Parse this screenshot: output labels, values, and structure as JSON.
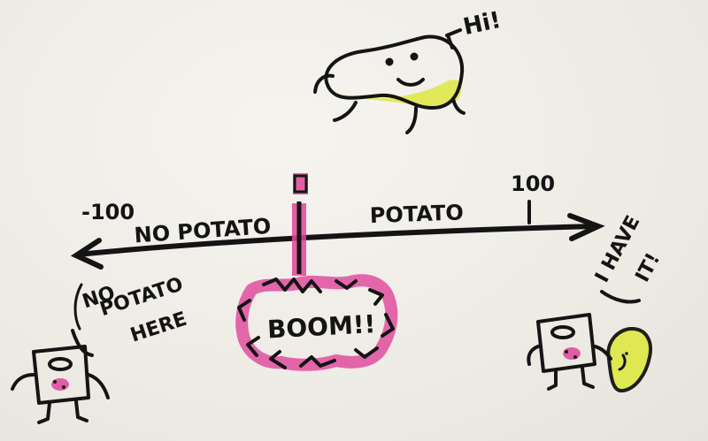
{
  "colors": {
    "ink": "#141414",
    "highlight_pink": "#e0449a",
    "highlight_yellow": "#dfe84a",
    "paper": "#f1efea"
  },
  "axis": {
    "left_tick": "-100",
    "center_tick": "0",
    "right_tick": "100",
    "left_label": "NO POTATO",
    "right_label": "POTATO"
  },
  "speech": {
    "potato_greeting": "Hi!",
    "left_character_line1": "NO",
    "left_character_line2": "POTATO",
    "left_character_line3": "HERE",
    "right_character_line1": "I HAVE",
    "right_character_line2": "IT!"
  },
  "explosion": {
    "text": "BOOM!!"
  },
  "icons": [
    "potato-character-icon",
    "toaster-character-icon",
    "explosion-icon",
    "held-potato-icon"
  ]
}
